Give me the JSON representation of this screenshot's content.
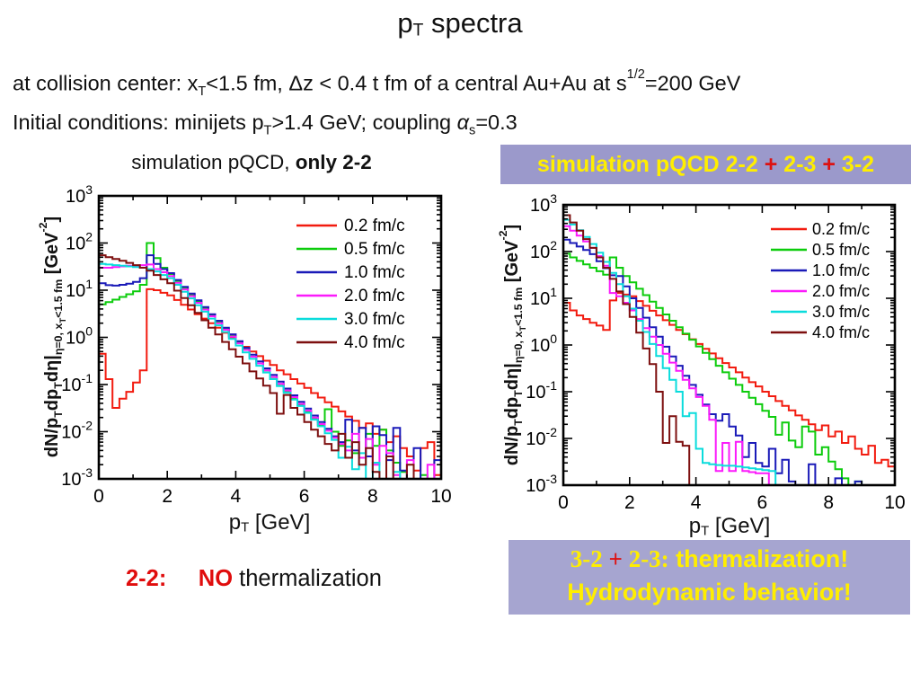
{
  "slide": {
    "title_segments": [
      {
        "t": "p"
      },
      {
        "t": "T",
        "sub": true
      },
      {
        "t": " spectra"
      }
    ],
    "intro_lines": [
      {
        "segments": [
          {
            "t": "at collision center: x"
          },
          {
            "t": "T",
            "sub": true
          },
          {
            "t": "<1.5 fm,  "
          },
          {
            "t": "Δz < 0.4 t fm of a central Au+Au at  s"
          },
          {
            "t": "1/2",
            "sup": true
          },
          {
            "t": "=200 GeV"
          }
        ]
      },
      {
        "segments": [
          {
            "t": "Initial conditions: minijets p"
          },
          {
            "t": "T",
            "sub": true
          },
          {
            "t": ">1.4 GeV;   coupling "
          },
          {
            "t": "α",
            "italic": true
          },
          {
            "t": "s",
            "sub": true
          },
          {
            "t": "=0.3"
          }
        ]
      }
    ],
    "left_panel": {
      "heading_segments": [
        {
          "t": "simulation pQCD, "
        },
        {
          "t": "only 2-2",
          "b": true
        }
      ],
      "caption_segments": [
        {
          "t": "2-2:",
          "b": true,
          "c": "#e00d0d"
        },
        {
          "t": "     "
        },
        {
          "t": "NO",
          "b": true,
          "c": "#e00d0d"
        },
        {
          "t": " thermalization"
        }
      ]
    },
    "right_panel": {
      "banner_bg": "#9b99cb",
      "box_bg": "#a6a5d0",
      "text_yellow": "#ffee00",
      "plus_red": "#dd1111",
      "banner_segments": [
        {
          "t": "simulation pQCD 2-2 ",
          "b": true
        },
        {
          "t": "+",
          "b": true,
          "c": "#dd1111"
        },
        {
          "t": " 2-3 ",
          "b": true
        },
        {
          "t": "+",
          "b": true,
          "c": "#dd1111"
        },
        {
          "t": " 3-2",
          "b": true
        }
      ],
      "box_line1_segments": [
        {
          "t": "3-2 ",
          "serif": true,
          "b": true
        },
        {
          "t": "+",
          "serif": true,
          "b": true,
          "c": "#dd1111"
        },
        {
          "t": " 2-3:",
          "serif": true,
          "b": true
        },
        {
          "t": " thermalization!",
          "b": true
        }
      ],
      "box_line2_segments": [
        {
          "t": "Hydrodynamic behavior!",
          "b": true
        }
      ]
    }
  },
  "chart_data": [
    {
      "type": "line",
      "title": "simulation pQCD, only 2-2",
      "xlabel": "pT [GeV]",
      "ylabel": "dN/pT dpT dη | η=0, xT<1.5 fm  [GeV^-2]",
      "xlabel_segments": [
        {
          "t": "p"
        },
        {
          "t": "T",
          "sub": true
        },
        {
          "t": " [GeV]"
        }
      ],
      "ylabel_segments": [
        {
          "t": "dN/p"
        },
        {
          "t": "T",
          "sub": true
        },
        {
          "t": "dp"
        },
        {
          "t": "T",
          "sub": true
        },
        {
          "t": "dη|"
        },
        {
          "t": "η=0, x",
          "sub": true
        },
        {
          "t": "T",
          "sub2": true
        },
        {
          "t": "<1.5 fm",
          "sub": true
        },
        {
          "t": "  [GeV"
        },
        {
          "t": "-2",
          "sup": true
        },
        {
          "t": "]"
        }
      ],
      "xlim": [
        0,
        10
      ],
      "ylog_range": [
        -3,
        3
      ],
      "x_major_ticks": [
        0,
        2,
        4,
        6,
        8,
        10
      ],
      "x_minor_ticks": [
        1,
        3,
        5,
        7,
        9
      ],
      "y_tick_exponents": [
        3,
        2,
        1,
        0,
        -1,
        -2,
        -3
      ],
      "bin_width": 0.2,
      "grid": false,
      "legend_position": "top-right",
      "series": [
        {
          "name": "0.2 fm/c",
          "color": "#f21b0f",
          "values": [
            0.45,
            0.13,
            0.032,
            0.05,
            0.07,
            0.11,
            0.2,
            10.5,
            10,
            8.8,
            7.8,
            6.2,
            4.9,
            3.9,
            3.1,
            2.5,
            2,
            1.6,
            1.25,
            1,
            0.8,
            0.63,
            0.5,
            0.4,
            0.32,
            0.26,
            0.2,
            0.165,
            0.13,
            0.105,
            0.085,
            0.066,
            0.053,
            0.042,
            0.034,
            0.027,
            0.021,
            0.017,
            0.012,
            0.015,
            0.009,
            0.011,
            0.006,
            0.008,
            0.0045,
            0.003,
            0.0015,
            0.0045,
            0.006,
            0.0012,
            0.0065
          ]
        },
        {
          "name": "0.5 fm/c",
          "color": "#0ccc0c",
          "values": [
            5,
            5.6,
            6.3,
            7.2,
            8.2,
            9.5,
            13,
            100,
            48,
            30,
            22,
            15.7,
            11.2,
            8,
            5.7,
            4.1,
            2.9,
            2.1,
            1.5,
            1.07,
            0.76,
            0.55,
            0.39,
            0.28,
            0.2,
            0.143,
            0.102,
            0.073,
            0.052,
            0.037,
            0.027,
            0.019,
            0.0136,
            0.03,
            0.01,
            0.005,
            0.0065,
            0.0035,
            0.0028,
            0.009,
            0.005,
            0.011,
            0.004,
            0.0022,
            0.0014,
            0.0009,
            0.0008,
            0.0012,
            0.0008,
            0.0008,
            0.0008
          ]
        },
        {
          "name": "1.0 fm/c",
          "color": "#1a1ab8",
          "values": [
            14,
            12.8,
            12.5,
            13,
            13.8,
            15,
            18,
            55,
            36,
            28,
            23,
            16.5,
            11.8,
            8.5,
            6.1,
            4.4,
            3.1,
            2.25,
            1.6,
            1.16,
            0.83,
            0.6,
            0.43,
            0.31,
            0.22,
            0.16,
            0.115,
            0.082,
            0.059,
            0.043,
            0.031,
            0.022,
            0.016,
            0.0115,
            0.008,
            0.006,
            0.018,
            0.004,
            0.012,
            0.003,
            0.013,
            0.0085,
            0.0025,
            0.012,
            0.0015,
            0.0008,
            0.0045,
            0.0008,
            0.0008,
            0.0025,
            0.0008
          ]
        },
        {
          "name": "2.0 fm/c",
          "color": "#fb1afb",
          "values": [
            30,
            30,
            31,
            32,
            33,
            33,
            34,
            35,
            28,
            24,
            20,
            14.4,
            10.4,
            7.5,
            5.4,
            3.9,
            2.8,
            2,
            1.45,
            1.04,
            0.75,
            0.54,
            0.39,
            0.28,
            0.2,
            0.145,
            0.104,
            0.075,
            0.054,
            0.039,
            0.028,
            0.02,
            0.0145,
            0.0105,
            0.0075,
            0.0055,
            0.004,
            0.009,
            0.0028,
            0.007,
            0.002,
            0.005,
            0.0035,
            0.0012,
            0.0008,
            0.0025,
            0.0008,
            0.0008,
            0.002,
            0.0008,
            0.0008
          ]
        },
        {
          "name": "3.0 fm/c",
          "color": "#0adcdc",
          "values": [
            36,
            35,
            34,
            33,
            32,
            31,
            30,
            28,
            25,
            21,
            18,
            13,
            9.3,
            6.7,
            4.8,
            3.5,
            2.5,
            1.8,
            1.3,
            0.93,
            0.67,
            0.48,
            0.35,
            0.25,
            0.18,
            0.13,
            0.093,
            0.067,
            0.048,
            0.035,
            0.025,
            0.018,
            0.013,
            0.0093,
            0.0067,
            0.0028,
            0.0048,
            0.0016,
            0.0035,
            0.0008,
            0.0022,
            0.0008,
            0.0008,
            0.0014,
            0.0008,
            0.0008,
            0.0008,
            0.0008,
            0.0008,
            0.0008,
            0.0008
          ]
        },
        {
          "name": "4.0 fm/c",
          "color": "#7d0f0f",
          "values": [
            55,
            50,
            46,
            42,
            38,
            34,
            30,
            26,
            21,
            17,
            14,
            9.8,
            6.8,
            4.8,
            3.3,
            2.3,
            1.6,
            1.15,
            0.8,
            0.56,
            0.39,
            0.28,
            0.19,
            0.135,
            0.095,
            0.066,
            0.024,
            0.06,
            0.032,
            0.023,
            0.016,
            0.011,
            0.008,
            0.0055,
            0.004,
            0.009,
            0.0028,
            0.006,
            0.002,
            0.0045,
            0.0014,
            0.0008,
            0.003,
            0.0008,
            0.0008,
            0.002,
            0.0008,
            0.0008,
            0.0008,
            0.0008,
            0.0008
          ]
        }
      ]
    },
    {
      "type": "line",
      "title": "simulation pQCD 2-2 + 2-3 + 3-2",
      "xlabel": "pT [GeV]",
      "ylabel": "dN/pT dpT dη | η=0, xT<1.5 fm  [GeV^-2]",
      "xlabel_segments": [
        {
          "t": "p"
        },
        {
          "t": "T",
          "sub": true
        },
        {
          "t": " [GeV]"
        }
      ],
      "ylabel_segments": [
        {
          "t": "dN/p"
        },
        {
          "t": "T",
          "sub": true
        },
        {
          "t": "dp"
        },
        {
          "t": "T",
          "sub": true
        },
        {
          "t": "dη|"
        },
        {
          "t": "η=0, x",
          "sub": true
        },
        {
          "t": "T",
          "sub2": true
        },
        {
          "t": "<1.5 fm",
          "sub": true
        },
        {
          "t": "  [GeV"
        },
        {
          "t": "-2",
          "sup": true
        },
        {
          "t": "]"
        }
      ],
      "xlim": [
        0,
        10
      ],
      "ylog_range": [
        -3,
        3
      ],
      "x_major_ticks": [
        0,
        2,
        4,
        6,
        8,
        10
      ],
      "x_minor_ticks": [
        1,
        3,
        5,
        7,
        9
      ],
      "y_tick_exponents": [
        3,
        2,
        1,
        0,
        -1,
        -2,
        -3
      ],
      "bin_width": 0.2,
      "grid": false,
      "legend_position": "top-right",
      "series": [
        {
          "name": "0.2 fm/c",
          "color": "#f21b0f",
          "values": [
            8,
            5.5,
            4.3,
            3.6,
            3,
            2.6,
            2.1,
            9,
            13,
            12,
            11,
            8.7,
            6.9,
            5.4,
            4.3,
            3.4,
            2.7,
            2.1,
            1.7,
            1.33,
            1.05,
            0.83,
            0.66,
            0.52,
            0.41,
            0.33,
            0.26,
            0.2,
            0.16,
            0.13,
            0.1,
            0.08,
            0.063,
            0.05,
            0.04,
            0.031,
            0.025,
            0.02,
            0.015,
            0.019,
            0.011,
            0.014,
            0.008,
            0.011,
            0.006,
            0.0045,
            0.007,
            0.003,
            0.0035,
            0.0025,
            0.0045
          ]
        },
        {
          "name": "0.5 fm/c",
          "color": "#0ccc0c",
          "values": [
            90,
            75,
            63,
            53,
            45,
            38,
            32,
            75,
            45,
            30,
            22,
            16,
            11.7,
            8.5,
            6.2,
            4.5,
            3.3,
            2.4,
            1.75,
            1.3,
            0.93,
            0.68,
            0.5,
            0.36,
            0.26,
            0.19,
            0.14,
            0.1,
            0.074,
            0.054,
            0.039,
            0.029,
            0.012,
            0.022,
            0.009,
            0.0065,
            0.018,
            0.014,
            0.0045,
            0.0065,
            0.0032,
            0.0022,
            0.0014,
            0.0009,
            0.0012,
            0.0008,
            0.0008,
            0.0008,
            0.0008,
            0.0008,
            0.0008
          ]
        },
        {
          "name": "1.0 fm/c",
          "color": "#1a1ab8",
          "values": [
            180,
            152,
            128,
            108,
            88,
            62,
            44,
            31,
            30,
            18,
            10,
            6.2,
            3.85,
            2.4,
            1.5,
            0.92,
            0.57,
            0.36,
            0.22,
            0.14,
            0.086,
            0.053,
            0.033,
            0.024,
            0.033,
            0.018,
            0.0115,
            0.004,
            0.008,
            0.003,
            0.0025,
            0.006,
            0.0018,
            0.0035,
            0.0012,
            0.0008,
            0.0008,
            0.0028,
            0.0008,
            0.0008,
            0.0008,
            0.0014,
            0.0008,
            0.0008,
            0.0012,
            0.0008,
            0.0008,
            0.0008,
            0.0008,
            0.0008,
            0.0008
          ]
        },
        {
          "name": "2.0 fm/c",
          "color": "#fb1afb",
          "values": [
            350,
            280,
            220,
            165,
            120,
            80,
            50,
            13,
            11,
            8,
            5.5,
            3.6,
            2.3,
            1.5,
            1,
            0.65,
            0.42,
            0.28,
            0.18,
            0.118,
            0.077,
            0.05,
            0.025,
            0.002,
            0.008,
            0.002,
            0.0085,
            0.002,
            0.0019,
            0.0018,
            0.0018,
            0.0008,
            0.0008,
            0.0008,
            0.0008,
            0.0008,
            0.0008,
            0.0008,
            0.0008,
            0.0008,
            0.0008,
            0.0008,
            0.0008,
            0.0008,
            0.0008,
            0.0008,
            0.0008,
            0.0008,
            0.0008,
            0.0008,
            0.0008
          ]
        },
        {
          "name": "3.0 fm/c",
          "color": "#0adcdc",
          "values": [
            480,
            380,
            285,
            205,
            145,
            95,
            60,
            35,
            20,
            11,
            6,
            3.3,
            1.9,
            1.05,
            0.58,
            0.32,
            0.18,
            0.1,
            0.03,
            0.035,
            0.006,
            0.003,
            0.0028,
            0.0027,
            0.0026,
            0.0026,
            0.0025,
            0.0024,
            0.0023,
            0.0022,
            0.0021,
            0.002,
            0.0008,
            0.0008,
            0.0008,
            0.0008,
            0.0008,
            0.0008,
            0.0008,
            0.0008,
            0.0008,
            0.0008,
            0.0008,
            0.0008,
            0.0008,
            0.0008,
            0.0008,
            0.0008,
            0.0008,
            0.0008,
            0.0008
          ]
        },
        {
          "name": "4.0 fm/c",
          "color": "#7d0f0f",
          "values": [
            600,
            420,
            280,
            185,
            120,
            75,
            45,
            26,
            14,
            7.5,
            4,
            1.84,
            0.84,
            0.39,
            0.1,
            0.008,
            0.03,
            0.0085,
            0.007,
            0.0008,
            0.0008,
            0.0008,
            0.0008,
            0.0008,
            0.0008,
            0.0008,
            0.0008,
            0.0008,
            0.0008,
            0.0008,
            0.0008,
            0.0008,
            0.0008,
            0.0008,
            0.0008,
            0.0008,
            0.0008,
            0.0008,
            0.0008,
            0.0008,
            0.0008,
            0.0008,
            0.0008,
            0.0008,
            0.0008,
            0.0008,
            0.0008,
            0.0008,
            0.0008,
            0.0008,
            0.0008
          ]
        }
      ]
    }
  ]
}
